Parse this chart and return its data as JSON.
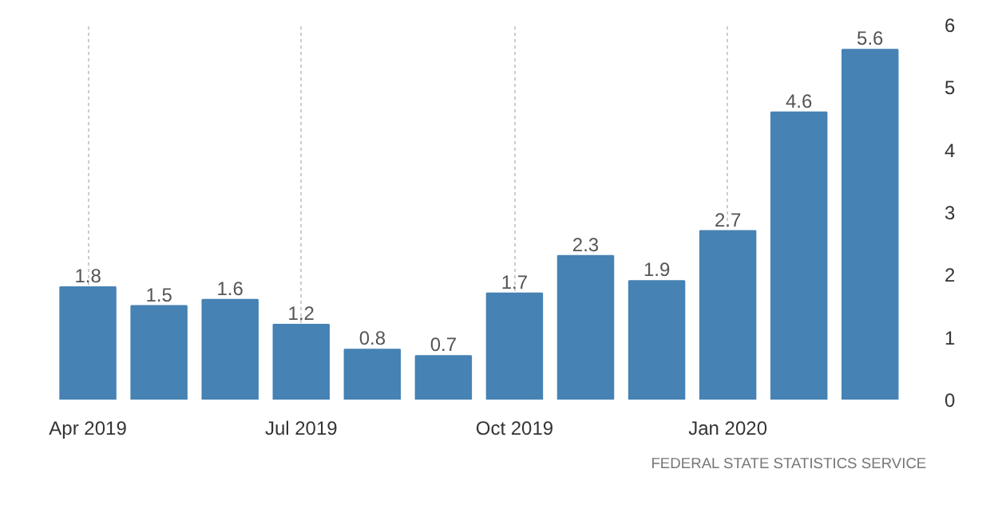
{
  "chart_data": {
    "type": "bar",
    "categories": [
      "Apr 2019",
      null,
      null,
      "Jul 2019",
      null,
      null,
      "Oct 2019",
      null,
      null,
      "Jan 2020",
      null,
      null
    ],
    "values": [
      1.8,
      1.5,
      1.6,
      1.2,
      0.8,
      0.7,
      1.7,
      2.3,
      1.9,
      2.7,
      4.6,
      5.6
    ],
    "color": "#4682b4",
    "ylim": [
      0,
      6
    ],
    "yticks": [
      0,
      1,
      2,
      3,
      4,
      5,
      6
    ],
    "grid": "x",
    "data_labels": true,
    "annotations": [
      "FEDERAL STATE STATISTICS SERVICE"
    ]
  }
}
